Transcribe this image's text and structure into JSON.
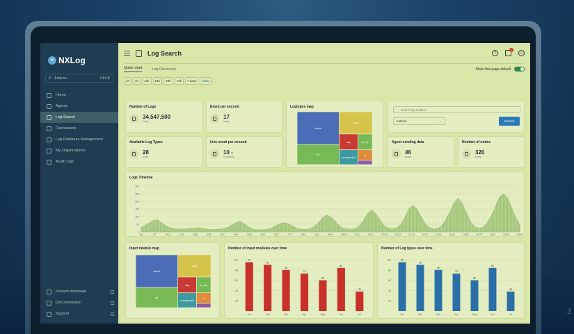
{
  "app": {
    "name": "NXLog",
    "page_title": "Log Search"
  },
  "sidebar": {
    "jump_placeholder": "Jump to...",
    "shortcut": "Ctrl+K",
    "items": [
      {
        "label": "Home",
        "active": false
      },
      {
        "label": "Agents",
        "active": false
      },
      {
        "label": "Log Search",
        "active": true
      },
      {
        "label": "Dashboards",
        "active": false
      },
      {
        "label": "Log Database Management",
        "active": false
      },
      {
        "label": "My Organizations",
        "active": false
      },
      {
        "label": "Audit Logs",
        "active": false
      }
    ],
    "bottom_items": [
      {
        "label": "Product download"
      },
      {
        "label": "Documentation"
      },
      {
        "label": "Support"
      }
    ]
  },
  "header": {
    "notification_count": "1"
  },
  "tabs": [
    {
      "label": "Quick start",
      "active": true
    },
    {
      "label": "Log Discovery",
      "active": false
    }
  ],
  "default_label": "Make this page default",
  "time_ranges": [
    "1h",
    "4h",
    "12h",
    "24h",
    "48h",
    "72h",
    "7 days",
    "today"
  ],
  "time_range_selected": "today",
  "stats": {
    "number_of_logs": {
      "title": "Number of Logs",
      "value": "34.547.500",
      "sub": "today"
    },
    "events_per_second": {
      "title": "Event per second",
      "value": "17",
      "sub": "today"
    },
    "available_log_types": {
      "title": "Available Log Types",
      "value": "28",
      "sub": "today"
    },
    "live_event": {
      "title": "Live event per second",
      "value": "10 -",
      "sub": "5 seconds"
    },
    "agent_sending": {
      "title": "Agent sending data",
      "value": "46",
      "sub": "today"
    },
    "number_of_nodes": {
      "title": "Number of nodes",
      "value": "320",
      "sub": "today"
    }
  },
  "logtypes_map_title": "Logtypes map",
  "search": {
    "placeholder": "Search by Fulltext",
    "select_value": "Fulltext",
    "button": "Search"
  },
  "timeline": {
    "title": "Logs Timeline"
  },
  "input_module_map_title": "Input module map",
  "colors": {
    "blue": "#4b6cb7",
    "yellow": "#d6c34b",
    "green": "#76b955",
    "red": "#c83a33",
    "purple": "#8e5aa8",
    "orange": "#e08a3a",
    "teal": "#3d9aa0",
    "bar_red": "#c8302a",
    "bar_blue": "#2a6fa8"
  },
  "treemap_labels": {
    "a": "kernel",
    "b": "audit",
    "c": "udp",
    "d": "im_ssh",
    "e": "fs",
    "f": "unsupported",
    "g": "file"
  },
  "chart_data": [
    {
      "type": "area",
      "title": "Logs Timeline",
      "x_ticks": [
        "N0",
        "N7",
        "N14",
        "N21",
        "N28",
        "N35",
        "N42",
        "N49",
        "N56",
        "N63",
        "N70",
        "N77",
        "N84",
        "N91",
        "N98",
        "N105",
        "N112",
        "N119",
        "N126",
        "N133",
        "N140",
        "N147",
        "N154",
        "N161",
        "N168",
        "N175",
        "N182",
        "N189",
        "N196"
      ],
      "y_ticks": [
        0,
        50,
        100,
        150,
        200,
        250,
        300
      ],
      "ylim": [
        0,
        300
      ],
      "series": [
        {
          "values": [
            30,
            45,
            60,
            75,
            80,
            60,
            40,
            28,
            22,
            20,
            18,
            20,
            22,
            25,
            28,
            22,
            18,
            15,
            16,
            18,
            20,
            30,
            45,
            60,
            70,
            55,
            35,
            20,
            15,
            14,
            15,
            20,
            30,
            45,
            58,
            60,
            50,
            35,
            22,
            18,
            16,
            20,
            35,
            60,
            90,
            110,
            100,
            75,
            45,
            25,
            20,
            18,
            22,
            40,
            75,
            120,
            145,
            120,
            80,
            40,
            25,
            20,
            25,
            45,
            90,
            150,
            175,
            150,
            100,
            55,
            30,
            20,
            22,
            40,
            80,
            130,
            190,
            220,
            190,
            130,
            70,
            35,
            25,
            30,
            55,
            100,
            160,
            225,
            250,
            225,
            160,
            95,
            50
          ]
        }
      ]
    },
    {
      "type": "bar",
      "title": "Number of input modules over time",
      "categories": [
        "Jan",
        "Feb",
        "Mar",
        "Apr",
        "May",
        "Jun",
        "Jul"
      ],
      "values": [
        95,
        90,
        80,
        73,
        60,
        84,
        38
      ],
      "y_ticks": [
        20,
        40,
        60,
        80,
        100
      ],
      "ylim": [
        0,
        100
      ]
    },
    {
      "type": "bar",
      "title": "Number of Log types over time",
      "categories": [
        "Jan",
        "Feb",
        "Mar",
        "Apr",
        "May",
        "Jun",
        "Jul"
      ],
      "values": [
        95,
        90,
        80,
        73,
        60,
        84,
        38
      ],
      "y_ticks": [
        20,
        40,
        60,
        80,
        100
      ],
      "ylim": [
        0,
        100
      ]
    }
  ]
}
